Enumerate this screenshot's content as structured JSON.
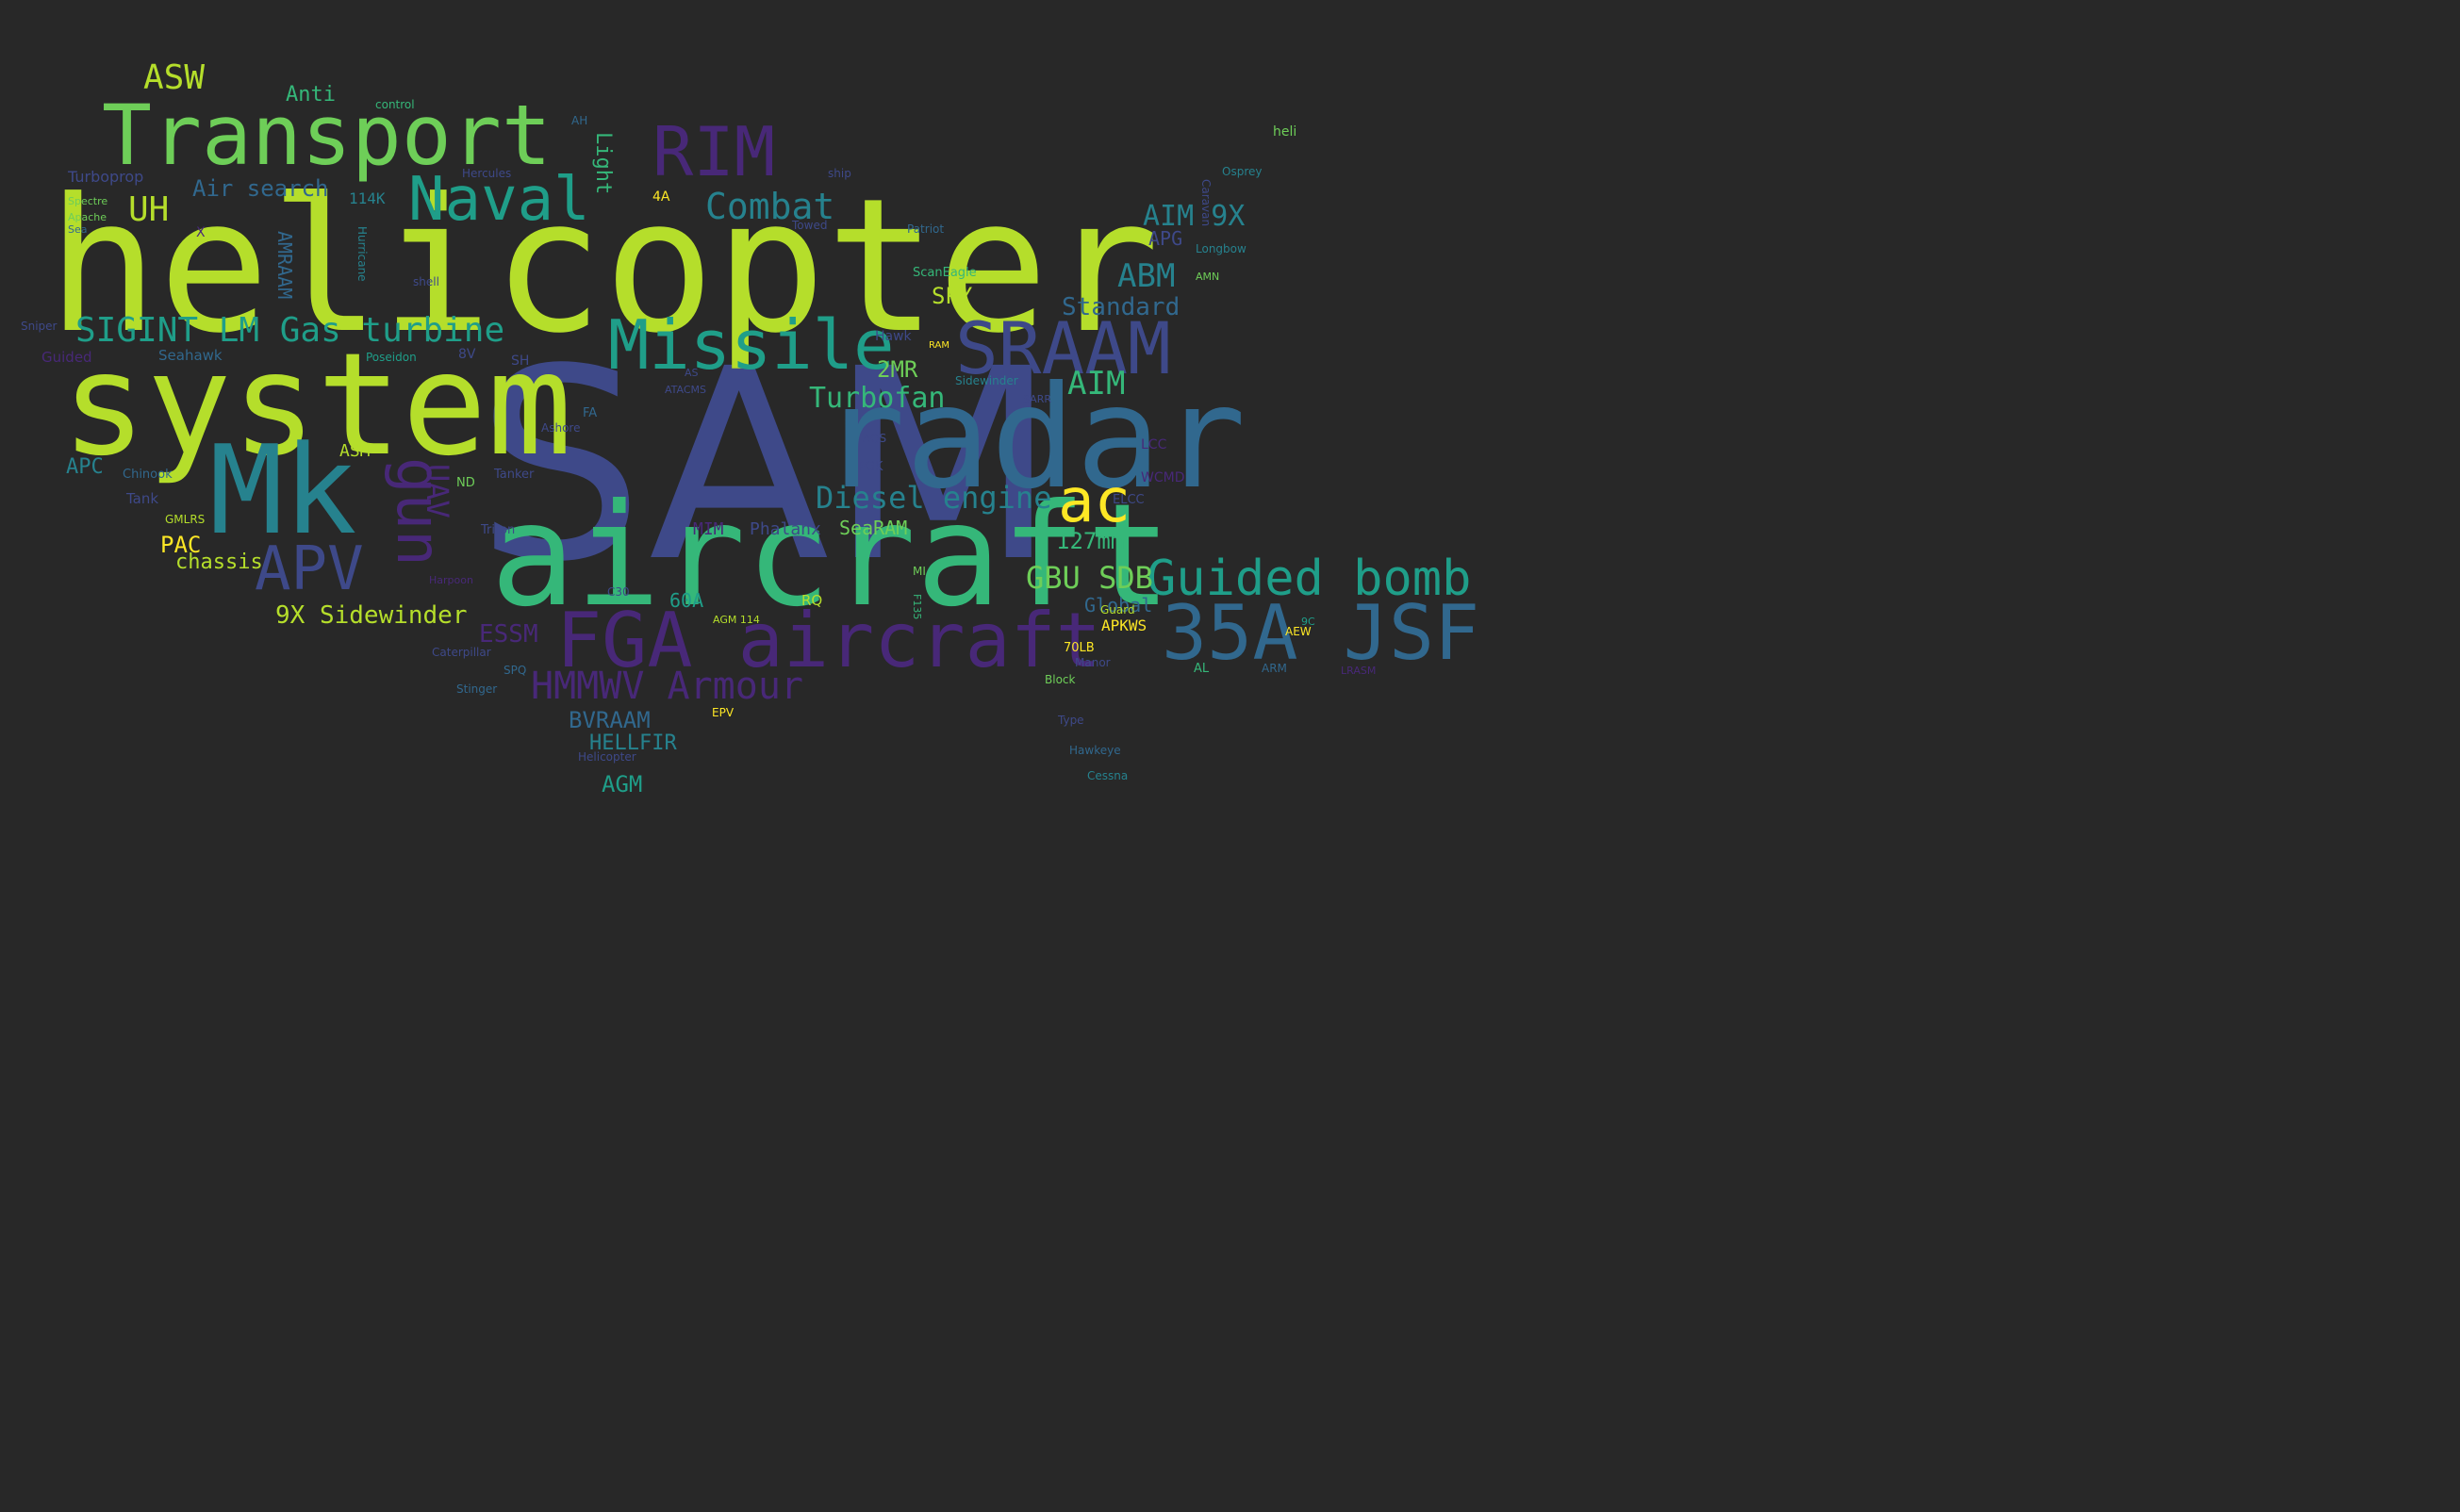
{
  "palette": {
    "background": "#282828",
    "yellow": "#fde725",
    "lime": "#b5de2b",
    "green": "#6ece58",
    "seagreen": "#35b779",
    "teal": "#1f9e89",
    "cyan": "#26828e",
    "blue": "#31688e",
    "indigo": "#3e4989",
    "violet": "#482878",
    "purple": "#440154"
  },
  "words": [
    {
      "text": "SAM",
      "color": "#3e4989"
    },
    {
      "text": "helicopter",
      "color": "#b5de2b"
    },
    {
      "text": "system",
      "color": "#b5de2b"
    },
    {
      "text": "aircraft",
      "color": "#35b779"
    },
    {
      "text": "radar",
      "color": "#31688e"
    },
    {
      "text": "Mk",
      "color": "#26828e"
    },
    {
      "text": "Transport",
      "color": "#6ece58"
    },
    {
      "text": "FGA aircraft",
      "color": "#482878"
    },
    {
      "text": "35A JSF",
      "color": "#31688e"
    },
    {
      "text": "SRAAM",
      "color": "#3e4989"
    },
    {
      "text": "Missile",
      "color": "#1f9e89"
    },
    {
      "text": "RIM",
      "color": "#482878"
    },
    {
      "text": "Naval",
      "color": "#1f9e89"
    },
    {
      "text": "Guided bomb",
      "color": "#1f9e89"
    },
    {
      "text": "APV",
      "color": "#3e4989"
    },
    {
      "text": "gun",
      "color": "#482878"
    },
    {
      "text": "ac",
      "color": "#fde725"
    },
    {
      "text": "SIGINT LM Gas turbine",
      "color": "#1f9e89"
    },
    {
      "text": "HMMWV Armour",
      "color": "#482878"
    },
    {
      "text": "Combat",
      "color": "#26828e"
    },
    {
      "text": "Diesel engine",
      "color": "#26828e"
    },
    {
      "text": "ASW",
      "color": "#b5de2b"
    },
    {
      "text": "ABM",
      "color": "#26828e"
    },
    {
      "text": "AIM",
      "color": "#35b779"
    },
    {
      "text": "GBU SDB",
      "color": "#6ece58"
    },
    {
      "text": "UH",
      "color": "#b5de2b"
    },
    {
      "text": "Turbofan",
      "color": "#35b779"
    },
    {
      "text": "UAV",
      "color": "#482878"
    },
    {
      "text": "AIM 9X",
      "color": "#26828e"
    },
    {
      "text": "9X Sidewinder",
      "color": "#b5de2b"
    },
    {
      "text": "Standard",
      "color": "#31688e"
    },
    {
      "text": "127mm",
      "color": "#35b779"
    },
    {
      "text": "Air search",
      "color": "#31688e"
    },
    {
      "text": "ESSM",
      "color": "#482878"
    },
    {
      "text": "BVRAAM",
      "color": "#31688e"
    },
    {
      "text": "HELLFIR",
      "color": "#26828e"
    },
    {
      "text": "AGM",
      "color": "#1f9e89"
    },
    {
      "text": "PAC",
      "color": "#fde725"
    },
    {
      "text": "APC",
      "color": "#26828e"
    },
    {
      "text": "chassis",
      "color": "#b5de2b"
    },
    {
      "text": "SPY",
      "color": "#b5de2b"
    },
    {
      "text": "2MR",
      "color": "#6ece58"
    },
    {
      "text": "Anti",
      "color": "#35b779"
    },
    {
      "text": "SeaRAM",
      "color": "#6ece58"
    },
    {
      "text": "Light",
      "color": "#35b779"
    },
    {
      "text": "APG",
      "color": "#3e4989"
    },
    {
      "text": "Global",
      "color": "#31688e"
    },
    {
      "text": "60A",
      "color": "#1f9e89"
    },
    {
      "text": "AMRAAM",
      "color": "#31688e"
    },
    {
      "text": "APKWS",
      "color": "#fde725"
    },
    {
      "text": "Phalanx",
      "color": "#3e4989"
    },
    {
      "text": "MIM",
      "color": "#482878"
    },
    {
      "text": "ASM",
      "color": "#b5de2b"
    },
    {
      "text": "114K",
      "color": "#26828e"
    },
    {
      "text": "Turboprop",
      "color": "#3e4989"
    },
    {
      "text": "Seahawk",
      "color": "#31688e"
    },
    {
      "text": "Guided",
      "color": "#482878"
    },
    {
      "text": "Hercules",
      "color": "#3e4989"
    },
    {
      "text": "Longbow",
      "color": "#26828e"
    },
    {
      "text": "Patriot",
      "color": "#31688e"
    },
    {
      "text": "ScanEagle",
      "color": "#35b779"
    },
    {
      "text": "Sidewinder",
      "color": "#26828e"
    },
    {
      "text": "Poseidon",
      "color": "#1f9e89"
    },
    {
      "text": "Ashore",
      "color": "#3e4989"
    },
    {
      "text": "Tanker",
      "color": "#3e4989"
    },
    {
      "text": "Triton",
      "color": "#3e4989"
    },
    {
      "text": "Chinook",
      "color": "#31688e"
    },
    {
      "text": "Tank",
      "color": "#3e4989"
    },
    {
      "text": "Caterpillar",
      "color": "#3e4989"
    },
    {
      "text": "Stinger",
      "color": "#31688e"
    },
    {
      "text": "Hawkeye",
      "color": "#31688e"
    },
    {
      "text": "Cessna",
      "color": "#26828e"
    },
    {
      "text": "Osprey",
      "color": "#26828e"
    },
    {
      "text": "Caravan",
      "color": "#3e4989"
    },
    {
      "text": "heli",
      "color": "#6ece58"
    },
    {
      "text": "Hawk",
      "color": "#3e4989"
    },
    {
      "text": "Towed",
      "color": "#3e4989"
    },
    {
      "text": "ship",
      "color": "#3e4989"
    },
    {
      "text": "control",
      "color": "#35b779"
    },
    {
      "text": "shell",
      "color": "#3e4989"
    },
    {
      "text": "Sniper",
      "color": "#3e4989"
    },
    {
      "text": "Spectre",
      "color": "#6ece58"
    },
    {
      "text": "Apache",
      "color": "#6ece58"
    },
    {
      "text": "Guard",
      "color": "#b5de2b"
    },
    {
      "text": "Manor",
      "color": "#3e4989"
    },
    {
      "text": "Block",
      "color": "#6ece58"
    },
    {
      "text": "Type",
      "color": "#3e4989"
    },
    {
      "text": "EPV",
      "color": "#fde725"
    },
    {
      "text": "AEW",
      "color": "#fde725"
    },
    {
      "text": "ARM",
      "color": "#31688e"
    },
    {
      "text": "Helicopter",
      "color": "#3e4989"
    },
    {
      "text": "70LB",
      "color": "#fde725"
    },
    {
      "text": "AL",
      "color": "#35b779"
    },
    {
      "text": "ELCC",
      "color": "#3e4989"
    },
    {
      "text": "WCMD",
      "color": "#482878"
    },
    {
      "text": "LCC",
      "color": "#482878"
    },
    {
      "text": "PGK",
      "color": "#3e4989"
    },
    {
      "text": "AQS",
      "color": "#3e4989"
    },
    {
      "text": "FA",
      "color": "#31688e"
    },
    {
      "text": "ND",
      "color": "#6ece58"
    },
    {
      "text": "RQ",
      "color": "#b5de2b"
    },
    {
      "text": "MI",
      "color": "#6ece58"
    },
    {
      "text": "SH",
      "color": "#3e4989"
    },
    {
      "text": "8V",
      "color": "#3e4989"
    },
    {
      "text": "SPQ",
      "color": "#31688e"
    },
    {
      "text": "C30",
      "color": "#3e4989"
    },
    {
      "text": "4A",
      "color": "#fde725"
    },
    {
      "text": "AGM 114",
      "color": "#b5de2b"
    },
    {
      "text": "LRASM",
      "color": "#482878"
    },
    {
      "text": "Harpoon",
      "color": "#482878"
    },
    {
      "text": "RAM",
      "color": "#fde725"
    },
    {
      "text": "SARR",
      "color": "#3e4989"
    },
    {
      "text": "F135",
      "color": "#35b779"
    },
    {
      "text": "GMLRS",
      "color": "#b5de2b"
    },
    {
      "text": "Sea",
      "color": "#31688e"
    },
    {
      "text": "AH",
      "color": "#31688e"
    },
    {
      "text": "Hurricane",
      "color": "#26828e"
    },
    {
      "text": "ATACMS",
      "color": "#3e4989"
    },
    {
      "text": "AMN",
      "color": "#6ece58"
    },
    {
      "text": "AS",
      "color": "#3e4989"
    },
    {
      "text": "9C",
      "color": "#1f9e89"
    },
    {
      "text": "X",
      "color": "#482878"
    }
  ]
}
